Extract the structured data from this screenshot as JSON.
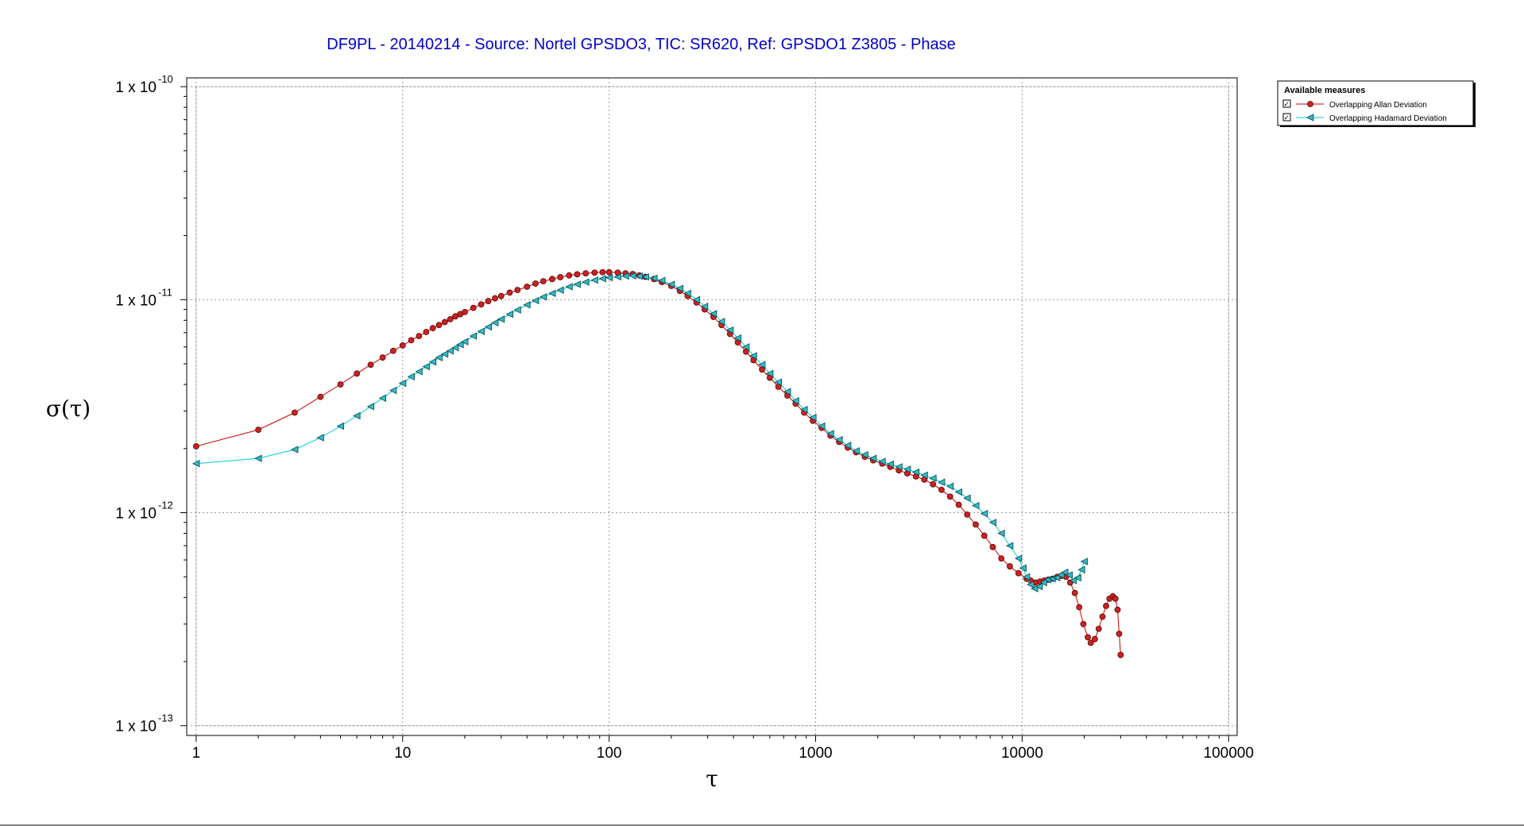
{
  "chart_data": {
    "type": "scatter",
    "title": "DF9PL - 20140214 - Source: Nortel GPSDO3, TIC: SR620, Ref: GPSDO1 Z3805 - Phase",
    "xlabel": "τ",
    "ylabel": "σ(τ)",
    "xscale": "log",
    "yscale": "log",
    "xlim": [
      0.9,
      110000
    ],
    "ylim": [
      9e-14,
      1.1e-10
    ],
    "grid": true,
    "x_ticks": [
      {
        "value": 1,
        "label": "1"
      },
      {
        "value": 10,
        "label": "10"
      },
      {
        "value": 100,
        "label": "100"
      },
      {
        "value": 1000,
        "label": "1000"
      },
      {
        "value": 10000,
        "label": "10000"
      },
      {
        "value": 100000,
        "label": "100000"
      }
    ],
    "y_ticks": [
      {
        "value": 1e-10,
        "mantissa": "1 x 10",
        "exponent": "-10"
      },
      {
        "value": 1e-11,
        "mantissa": "1 x 10",
        "exponent": "-11"
      },
      {
        "value": 1e-12,
        "mantissa": "1 x 10",
        "exponent": "-12"
      },
      {
        "value": 1e-13,
        "mantissa": "1 x 10",
        "exponent": "-13"
      }
    ],
    "legend": {
      "title": "Available measures",
      "position": "top-right",
      "checked": true
    },
    "series": [
      {
        "name": "Overlapping Allan Deviation",
        "color": "#cc0000",
        "fill": "#cc2222",
        "marker": "circle",
        "x": [
          1,
          2,
          3,
          4,
          5,
          6,
          7,
          8,
          9,
          10,
          11,
          12,
          13,
          14,
          15,
          16,
          17,
          18,
          19,
          20,
          22,
          24,
          26,
          28,
          30,
          33,
          36,
          40,
          44,
          48,
          53,
          58,
          64,
          70,
          77,
          85,
          93,
          100,
          110,
          120,
          130,
          140,
          150,
          165,
          180,
          200,
          220,
          240,
          265,
          290,
          320,
          350,
          385,
          420,
          460,
          500,
          550,
          600,
          660,
          730,
          800,
          880,
          970,
          1070,
          1180,
          1300,
          1430,
          1570,
          1730,
          1900,
          2100,
          2300,
          2530,
          2780,
          3060,
          3360,
          3700,
          4070,
          4480,
          4930,
          5420,
          5960,
          6560,
          7210,
          7930,
          8720,
          9600,
          10500,
          11000,
          11600,
          12200,
          12800,
          13400,
          14100,
          14800,
          15500,
          16300,
          17100,
          18000,
          18900,
          19800,
          20800,
          21500,
          22500,
          23500,
          24500,
          25500,
          26500,
          27500,
          28300,
          29000,
          29500,
          30000
        ],
        "y": [
          2.05e-12,
          2.45e-12,
          2.95e-12,
          3.5e-12,
          4e-12,
          4.5e-12,
          4.95e-12,
          5.35e-12,
          5.75e-12,
          6.1e-12,
          6.45e-12,
          6.75e-12,
          7.05e-12,
          7.35e-12,
          7.6e-12,
          7.85e-12,
          8.1e-12,
          8.35e-12,
          8.55e-12,
          8.75e-12,
          9.15e-12,
          9.5e-12,
          9.85e-12,
          1.015e-11,
          1.04e-11,
          1.08e-11,
          1.11e-11,
          1.15e-11,
          1.19e-11,
          1.22e-11,
          1.25e-11,
          1.275e-11,
          1.3e-11,
          1.315e-11,
          1.33e-11,
          1.34e-11,
          1.345e-11,
          1.345e-11,
          1.34e-11,
          1.33e-11,
          1.32e-11,
          1.3e-11,
          1.28e-11,
          1.25e-11,
          1.21e-11,
          1.16e-11,
          1.1e-11,
          1.04e-11,
          9.7e-12,
          9e-12,
          8.3e-12,
          7.6e-12,
          6.9e-12,
          6.3e-12,
          5.7e-12,
          5.2e-12,
          4.7e-12,
          4.3e-12,
          3.9e-12,
          3.55e-12,
          3.25e-12,
          2.95e-12,
          2.7e-12,
          2.5e-12,
          2.3e-12,
          2.15e-12,
          2.02e-12,
          1.92e-12,
          1.83e-12,
          1.76e-12,
          1.7e-12,
          1.64e-12,
          1.58e-12,
          1.53e-12,
          1.48e-12,
          1.43e-12,
          1.36e-12,
          1.28e-12,
          1.19e-12,
          1.09e-12,
          9.8e-13,
          8.8e-13,
          7.8e-13,
          6.9e-13,
          6.1e-13,
          5.6e-13,
          5.2e-13,
          4.9e-13,
          4.8e-13,
          4.7e-13,
          4.75e-13,
          4.8e-13,
          4.85e-13,
          4.9e-13,
          5e-13,
          5.05e-13,
          5e-13,
          4.7e-13,
          4.2e-13,
          3.6e-13,
          3e-13,
          2.6e-13,
          2.45e-13,
          2.55e-13,
          2.85e-13,
          3.25e-13,
          3.65e-13,
          3.95e-13,
          4.05e-13,
          3.95e-13,
          3.5e-13,
          2.7e-13,
          2.15e-13
        ]
      },
      {
        "name": "Overlapping Hadamard Deviation",
        "color": "#00cccc",
        "fill": "#33bbcc",
        "marker": "triangle-left",
        "x": [
          1,
          2,
          3,
          4,
          5,
          6,
          7,
          8,
          9,
          10,
          11,
          12,
          13,
          14,
          15,
          16,
          17,
          18,
          19,
          20,
          22,
          24,
          26,
          28,
          30,
          33,
          36,
          40,
          44,
          48,
          53,
          58,
          64,
          70,
          77,
          85,
          93,
          100,
          110,
          120,
          130,
          140,
          150,
          165,
          180,
          200,
          220,
          240,
          265,
          290,
          320,
          350,
          385,
          420,
          460,
          500,
          550,
          600,
          660,
          730,
          800,
          880,
          970,
          1070,
          1180,
          1300,
          1430,
          1570,
          1730,
          1900,
          2100,
          2300,
          2530,
          2780,
          3060,
          3360,
          3700,
          4070,
          4480,
          4930,
          5420,
          5960,
          6560,
          7210,
          7930,
          8720,
          9600,
          10100,
          10500,
          11000,
          11500,
          12100,
          12700,
          13300,
          14000,
          14700,
          15400,
          16100,
          16900,
          17700,
          18600,
          19400,
          20000
        ],
        "y": [
          1.7e-12,
          1.8e-12,
          1.98e-12,
          2.25e-12,
          2.55e-12,
          2.85e-12,
          3.15e-12,
          3.45e-12,
          3.75e-12,
          4.05e-12,
          4.35e-12,
          4.6e-12,
          4.85e-12,
          5.1e-12,
          5.35e-12,
          5.55e-12,
          5.75e-12,
          5.95e-12,
          6.15e-12,
          6.35e-12,
          6.75e-12,
          7.1e-12,
          7.45e-12,
          7.8e-12,
          8.1e-12,
          8.55e-12,
          8.95e-12,
          9.45e-12,
          9.9e-12,
          1.03e-11,
          1.07e-11,
          1.11e-11,
          1.15e-11,
          1.18e-11,
          1.21e-11,
          1.235e-11,
          1.255e-11,
          1.27e-11,
          1.28e-11,
          1.29e-11,
          1.295e-11,
          1.29e-11,
          1.28e-11,
          1.26e-11,
          1.23e-11,
          1.18e-11,
          1.13e-11,
          1.07e-11,
          1e-11,
          9.3e-12,
          8.6e-12,
          7.9e-12,
          7.2e-12,
          6.6e-12,
          6e-12,
          5.45e-12,
          4.95e-12,
          4.5e-12,
          4.1e-12,
          3.7e-12,
          3.35e-12,
          3.05e-12,
          2.8e-12,
          2.55e-12,
          2.35e-12,
          2.2e-12,
          2.07e-12,
          1.95e-12,
          1.87e-12,
          1.8e-12,
          1.74e-12,
          1.69e-12,
          1.64e-12,
          1.6e-12,
          1.55e-12,
          1.5e-12,
          1.45e-12,
          1.39e-12,
          1.33e-12,
          1.25e-12,
          1.17e-12,
          1.08e-12,
          9.9e-13,
          9e-13,
          8e-13,
          7e-13,
          6.1e-13,
          5.5e-13,
          5e-13,
          4.6e-13,
          4.4e-13,
          4.5e-13,
          4.7e-13,
          4.85e-13,
          4.9e-13,
          4.95e-13,
          5.1e-13,
          5.25e-13,
          5.1e-13,
          4.8e-13,
          4.95e-13,
          5.4e-13,
          5.9e-13
        ]
      }
    ]
  }
}
